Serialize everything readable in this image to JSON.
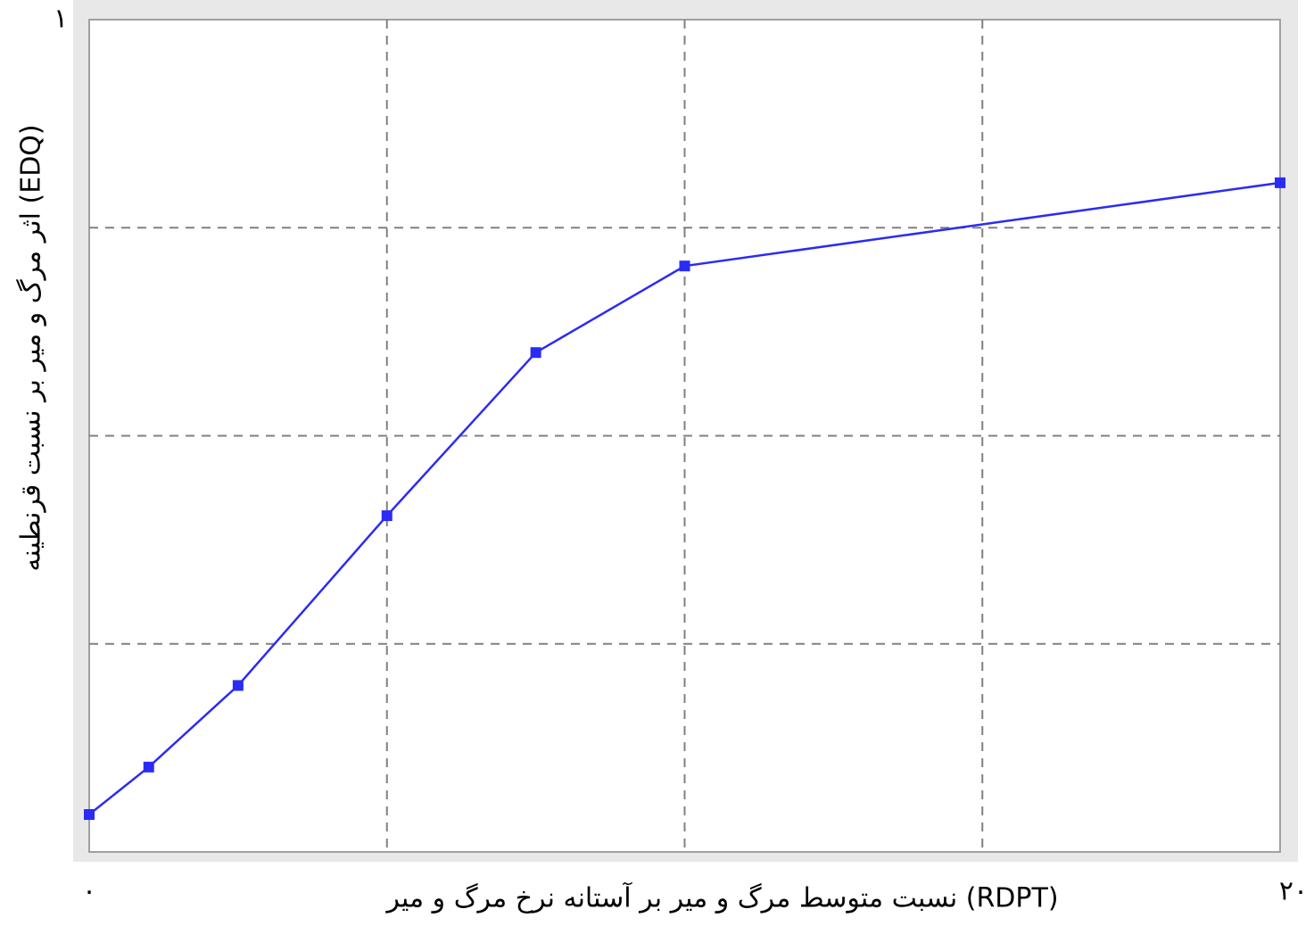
{
  "chart_data": {
    "type": "line",
    "xlabel": "نسبت متوسط مرگ و میر بر آستانه نرخ مرگ و میر (RDPT)",
    "ylabel": "اثر مرگ و میر بر نسبت قرنطینه (EDQ)",
    "x": [
      0,
      1,
      2.5,
      5,
      7.5,
      10,
      20
    ],
    "series": [
      {
        "color": "#2b2bf5",
        "values": [
          0.045,
          0.102,
          0.2,
          0.404,
          0.6,
          0.704,
          0.804
        ]
      }
    ],
    "xlim": [
      0,
      20
    ],
    "ylim": [
      0,
      1
    ],
    "xticks": [
      {
        "value": 0,
        "label": "٠"
      },
      {
        "value": 20,
        "label": "٢٠"
      }
    ],
    "yticks": [
      {
        "value": 1,
        "label": "١"
      }
    ],
    "xgrid": [
      5,
      10,
      15
    ],
    "ygrid": [
      0.25,
      0.5,
      0.75
    ],
    "grid": true
  }
}
